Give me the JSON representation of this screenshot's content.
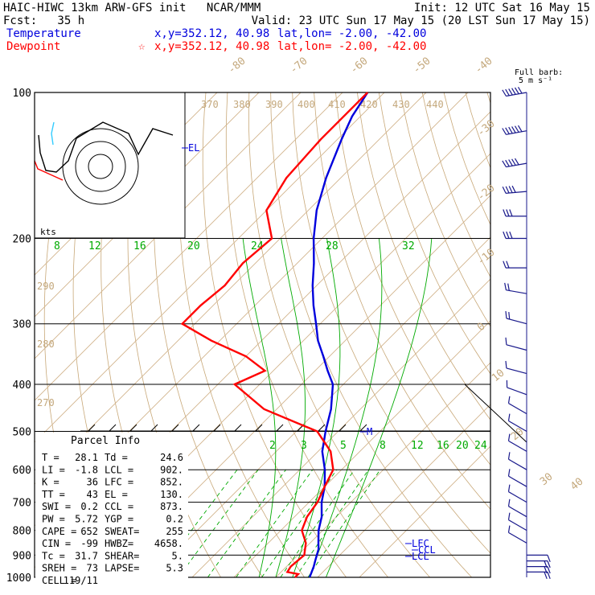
{
  "header": {
    "left_line1": "HAIC-HIWC 13km ARW-GFS init   NCAR/MMM",
    "right_line1": "Init: 12 UTC Sat 16 May 15",
    "left_line2": "Fcst:   35 h",
    "right_line2": "Valid: 23 UTC Sun 17 May 15 (20 LST Sun 17 May 15)",
    "temp_label": "Temperature",
    "temp_xy": "x,y=352.12, 40.98",
    "temp_latlon": "lat,lon= -2.00, -42.00",
    "dew_label": "Dewpoint",
    "dew_star": "☆",
    "dew_xy": "x,y=352.12, 40.98",
    "dew_latlon": "lat,lon= -2.00, -42.00"
  },
  "barb_legend": {
    "line1": "Full barb:",
    "line2": "5 m s⁻¹"
  },
  "hodograph": {
    "units": "kts"
  },
  "parcel_info": {
    "title": "Parcel Info",
    "rows": [
      [
        "T   =",
        "28.1",
        "Td  =",
        "24.6"
      ],
      [
        "LI  =",
        "-1.8",
        "LCL =",
        "902."
      ],
      [
        "K   =",
        "36",
        "LFC =",
        "852."
      ],
      [
        "TT  =",
        "43",
        "EL  =",
        "130."
      ],
      [
        "SWI =",
        "0.2",
        "CCL =",
        "873."
      ],
      [
        "PW  =",
        "5.72",
        "YGP =",
        "0.2"
      ],
      [
        "CAPE =",
        "652",
        "SWEAT=",
        "255"
      ],
      [
        "CIN  =",
        "-99",
        "HWBZ=",
        "4658."
      ],
      [
        "Tc   =",
        "31.7",
        "SHEAR=",
        "5."
      ],
      [
        "SREH =",
        "73",
        "LAPSE=",
        "5.3"
      ],
      [
        "CELL =",
        "119/11",
        "",
        ""
      ]
    ]
  },
  "chart_data": {
    "type": "line",
    "title": "",
    "pressure_levels_hPa": [
      100,
      200,
      300,
      400,
      500,
      600,
      700,
      800,
      900,
      1000
    ],
    "temperature_isotherm_labels": [
      "-80",
      "-70",
      "-60",
      "-50",
      "-40",
      "-30",
      "-20",
      "-10",
      "0",
      "10",
      "20",
      "30",
      "40"
    ],
    "theta_labels_K": [
      "370",
      "380",
      "390",
      "400",
      "410",
      "420",
      "430",
      "440",
      "290",
      "280",
      "270"
    ],
    "mixing_ratio_labels_upper": [
      "8",
      "12",
      "16",
      "20",
      "24",
      "28",
      "32"
    ],
    "mixing_ratio_labels_lower": [
      "2",
      "3",
      "5",
      "8",
      "12",
      "16",
      "20",
      "24"
    ],
    "level_markers": [
      "EL",
      "M",
      "LFC",
      "CCL",
      "LCL"
    ],
    "series": [
      {
        "name": "Temperature",
        "color": "#0000dd",
        "points": [
          [
            100,
            -74
          ],
          [
            112,
            -72
          ],
          [
            125,
            -69
          ],
          [
            150,
            -63.5
          ],
          [
            175,
            -58
          ],
          [
            200,
            -52
          ],
          [
            225,
            -46
          ],
          [
            250,
            -41
          ],
          [
            275,
            -36
          ],
          [
            300,
            -31
          ],
          [
            325,
            -26.5
          ],
          [
            350,
            -21.5
          ],
          [
            375,
            -17
          ],
          [
            400,
            -12.5
          ],
          [
            450,
            -7
          ],
          [
            500,
            -3
          ],
          [
            550,
            1
          ],
          [
            600,
            6
          ],
          [
            650,
            10
          ],
          [
            700,
            13
          ],
          [
            750,
            16.5
          ],
          [
            800,
            19
          ],
          [
            850,
            22
          ],
          [
            875,
            23.5
          ],
          [
            900,
            24.5
          ],
          [
            925,
            25.5
          ],
          [
            950,
            26.5
          ],
          [
            975,
            27.3
          ],
          [
            1000,
            28.1
          ]
        ]
      },
      {
        "name": "Dewpoint",
        "color": "#ff0000",
        "points": [
          [
            100,
            -74
          ],
          [
            125,
            -74
          ],
          [
            150,
            -73
          ],
          [
            175,
            -70
          ],
          [
            200,
            -62
          ],
          [
            225,
            -63
          ],
          [
            250,
            -62
          ],
          [
            275,
            -63
          ],
          [
            300,
            -63
          ],
          [
            325,
            -52
          ],
          [
            350,
            -40
          ],
          [
            375,
            -32
          ],
          [
            400,
            -36
          ],
          [
            450,
            -23
          ],
          [
            500,
            -5
          ],
          [
            550,
            3
          ],
          [
            600,
            8
          ],
          [
            650,
            10
          ],
          [
            700,
            12
          ],
          [
            750,
            13
          ],
          [
            800,
            15
          ],
          [
            850,
            19
          ],
          [
            900,
            21.5
          ],
          [
            950,
            21
          ],
          [
            975,
            21.5
          ],
          [
            985,
            24.6
          ],
          [
            1000,
            24.6
          ]
        ]
      }
    ],
    "wind_barbs": {
      "pressures_hPa": [
        100,
        120,
        140,
        160,
        180,
        200,
        230,
        260,
        300,
        340,
        380,
        420,
        460,
        500,
        550,
        600,
        650,
        700,
        750,
        800,
        850,
        900,
        925,
        950,
        975
      ],
      "speeds_kt": [
        60,
        55,
        45,
        35,
        30,
        25,
        20,
        15,
        15,
        10,
        10,
        10,
        10,
        10,
        10,
        10,
        10,
        10,
        10,
        10,
        10,
        10,
        15,
        15,
        15
      ],
      "dirs_deg": [
        260,
        260,
        260,
        265,
        270,
        270,
        270,
        280,
        285,
        285,
        285,
        290,
        300,
        300,
        300,
        300,
        300,
        300,
        300,
        300,
        300,
        90,
        90,
        90,
        90
      ]
    },
    "hodograph_rings_kt": [
      10,
      20,
      30
    ],
    "colors": {
      "temperature": "#0000dd",
      "dewpoint": "#ff0000",
      "isotherm": "#d2b48c",
      "mixing_ratio": "#00aa00",
      "adiabat": "#c8a878"
    }
  }
}
